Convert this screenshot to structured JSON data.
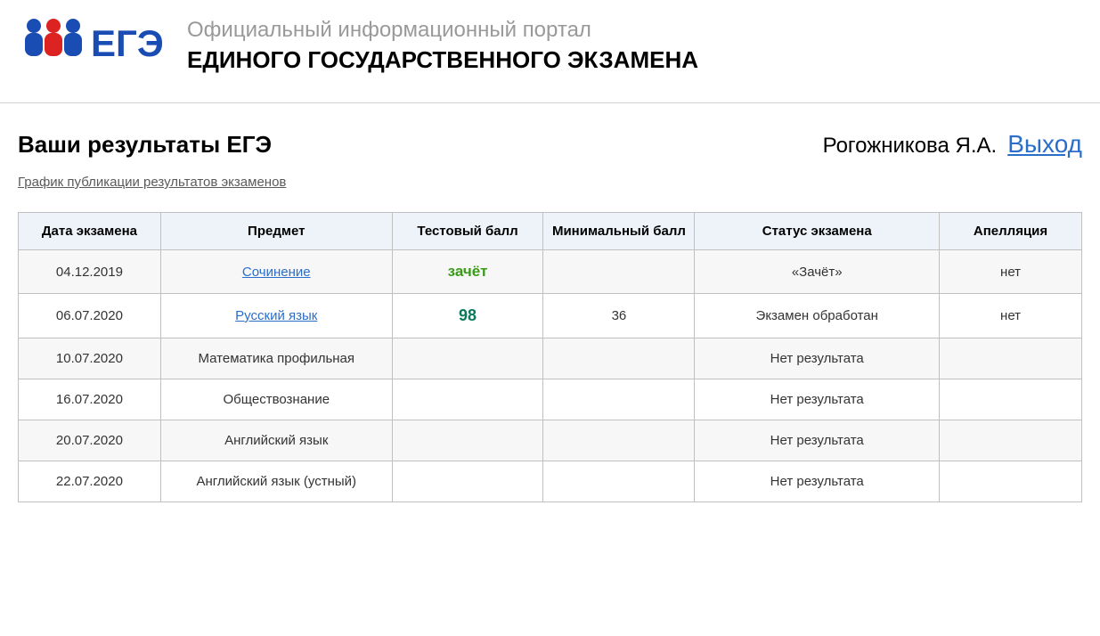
{
  "header": {
    "subtitle": "Официальный информационный портал",
    "title": "ЕДИНОГО ГОСУДАРСТВЕННОГО ЭКЗАМЕНА",
    "logo_text": "ЕГЭ"
  },
  "page": {
    "title": "Ваши результаты ЕГЭ",
    "schedule_link": "График публикации результатов экзаменов"
  },
  "user": {
    "name": "Рогожникова Я.А.",
    "logout": "Выход"
  },
  "table": {
    "columns": [
      "Дата экзамена",
      "Предмет",
      "Тестовый балл",
      "Минимальный балл",
      "Статус экзамена",
      "Апелляция"
    ],
    "rows": [
      {
        "date": "04.12.2019",
        "subject": "Сочинение",
        "subject_is_link": true,
        "test_score": "зачёт",
        "score_style": "pass",
        "min_score": "",
        "status": "«Зачёт»",
        "appeal": "нет"
      },
      {
        "date": "06.07.2020",
        "subject": "Русский язык",
        "subject_is_link": true,
        "test_score": "98",
        "score_style": "num",
        "min_score": "36",
        "status": "Экзамен обработан",
        "appeal": "нет"
      },
      {
        "date": "10.07.2020",
        "subject": "Математика профильная",
        "subject_is_link": false,
        "test_score": "",
        "score_style": "",
        "min_score": "",
        "status": "Нет результата",
        "appeal": ""
      },
      {
        "date": "16.07.2020",
        "subject": "Обществознание",
        "subject_is_link": false,
        "test_score": "",
        "score_style": "",
        "min_score": "",
        "status": "Нет результата",
        "appeal": ""
      },
      {
        "date": "20.07.2020",
        "subject": "Английский язык",
        "subject_is_link": false,
        "test_score": "",
        "score_style": "",
        "min_score": "",
        "status": "Нет результата",
        "appeal": ""
      },
      {
        "date": "22.07.2020",
        "subject": "Английский язык (устный)",
        "subject_is_link": false,
        "test_score": "",
        "score_style": "",
        "min_score": "",
        "status": "Нет результата",
        "appeal": ""
      }
    ]
  },
  "colors": {
    "header_bg": "#eef3f9",
    "border": "#c0c0c0",
    "link": "#2a6ec9",
    "pass": "#3a9a1a",
    "num": "#0a7a5a"
  }
}
